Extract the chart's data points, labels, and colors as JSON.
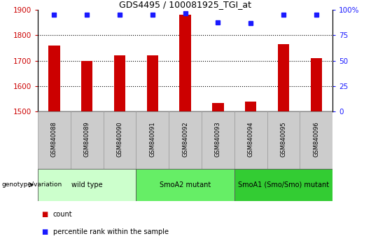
{
  "title": "GDS4495 / 100081925_TGI_at",
  "samples": [
    "GSM840088",
    "GSM840089",
    "GSM840090",
    "GSM840091",
    "GSM840092",
    "GSM840093",
    "GSM840094",
    "GSM840095",
    "GSM840096"
  ],
  "counts": [
    1760,
    1700,
    1720,
    1720,
    1880,
    1535,
    1540,
    1765,
    1710
  ],
  "percentile_ranks": [
    95,
    95,
    95,
    95,
    97,
    88,
    87,
    95,
    95
  ],
  "ylim_left": [
    1500,
    1900
  ],
  "ylim_right": [
    0,
    100
  ],
  "yticks_left": [
    1500,
    1600,
    1700,
    1800,
    1900
  ],
  "yticks_right": [
    0,
    25,
    50,
    75,
    100
  ],
  "bar_color": "#cc0000",
  "dot_color": "#1a1aff",
  "groups": [
    {
      "label": "wild type",
      "indices": [
        0,
        1,
        2
      ],
      "color": "#ccffcc"
    },
    {
      "label": "SmoA2 mutant",
      "indices": [
        3,
        4,
        5
      ],
      "color": "#66ee66"
    },
    {
      "label": "SmoA1 (Smo/Smo) mutant",
      "indices": [
        6,
        7,
        8
      ],
      "color": "#33cc33"
    }
  ],
  "legend_count_color": "#cc0000",
  "legend_dot_color": "#1a1aff",
  "right_axis_color": "#1a1aff",
  "left_axis_color": "#cc0000",
  "grid_color": "#000000",
  "sample_label_bg": "#cccccc",
  "sample_label_edge": "#999999"
}
